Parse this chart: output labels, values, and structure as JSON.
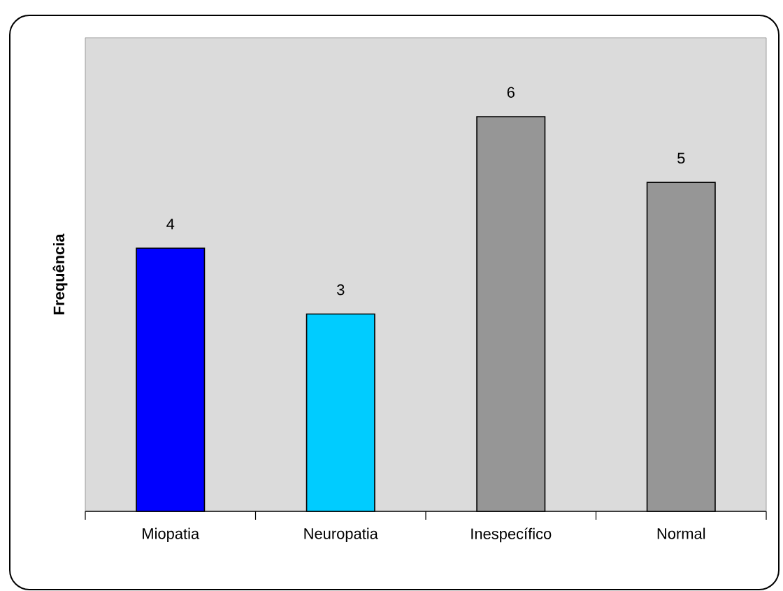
{
  "chart_data": {
    "type": "bar",
    "ylabel": "Frequência",
    "categories": [
      "Miopatia",
      "Neuropatia",
      "Inespecífico",
      "Normal"
    ],
    "values": [
      4,
      3,
      6,
      5
    ],
    "colors": [
      "#0000ff",
      "#00ccff",
      "#969696",
      "#969696"
    ],
    "data_labels": true,
    "tick_labels": "x"
  }
}
